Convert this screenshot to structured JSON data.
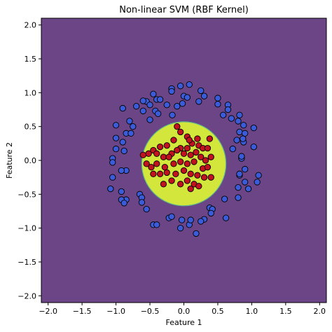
{
  "chart_data": {
    "type": "scatter",
    "title": "Non-linear SVM (RBF Kernel)",
    "xlabel": "Feature 1",
    "ylabel": "Feature 2",
    "xlim": [
      -2.1,
      2.1
    ],
    "ylim": [
      -2.1,
      2.1
    ],
    "xticks": [
      -2.0,
      -1.5,
      -1.0,
      -0.5,
      0.0,
      0.5,
      1.0,
      1.5,
      2.0
    ],
    "yticks": [
      -2.0,
      -1.5,
      -1.0,
      -0.5,
      0.0,
      0.5,
      1.0,
      1.5,
      2.0
    ],
    "xtick_labels": [
      "−2.0",
      "−1.5",
      "−1.0",
      "−0.5",
      "0.0",
      "0.5",
      "1.0",
      "1.5",
      "2.0"
    ],
    "ytick_labels": [
      "−2.0",
      "−1.5",
      "−1.0",
      "−0.5",
      "0.0",
      "0.5",
      "1.0",
      "1.5",
      "2.0"
    ],
    "grid": false,
    "decision_regions": {
      "outer_color": "#6b4585",
      "inner_color": "#d3e63c",
      "inner_boundary": "circle",
      "inner_radius": 0.62,
      "boundary_center": [
        0.0,
        -0.05
      ]
    },
    "series": [
      {
        "class": "outer",
        "color": "#3b5cd8",
        "points": [
          [
            -0.05,
            1.1
          ],
          [
            0.08,
            1.12
          ],
          [
            0.25,
            1.03
          ],
          [
            0.3,
            0.95
          ],
          [
            0.0,
            0.95
          ],
          [
            -0.18,
            1.06
          ],
          [
            -0.18,
            1.02
          ],
          [
            0.05,
            0.93
          ],
          [
            0.22,
            0.87
          ],
          [
            -0.45,
            0.98
          ],
          [
            -0.55,
            0.87
          ],
          [
            -0.4,
            0.9
          ],
          [
            -0.35,
            0.9
          ],
          [
            -0.7,
            0.8
          ],
          [
            -0.9,
            0.77
          ],
          [
            0.5,
            0.92
          ],
          [
            0.5,
            0.83
          ],
          [
            0.65,
            0.82
          ],
          [
            0.65,
            0.75
          ],
          [
            -0.5,
            0.82
          ],
          [
            -0.42,
            0.73
          ],
          [
            -0.38,
            0.69
          ],
          [
            -0.02,
            0.84
          ],
          [
            -0.6,
            0.73
          ],
          [
            -0.17,
            0.67
          ],
          [
            -0.5,
            0.6
          ],
          [
            -0.8,
            0.58
          ],
          [
            -0.75,
            0.5
          ],
          [
            -1.0,
            0.52
          ],
          [
            -0.85,
            0.4
          ],
          [
            -1.0,
            0.33
          ],
          [
            -0.9,
            0.27
          ],
          [
            -0.88,
            0.14
          ],
          [
            -1.0,
            0.17
          ],
          [
            -1.05,
            0.03
          ],
          [
            -1.05,
            -0.03
          ],
          [
            -0.85,
            -0.15
          ],
          [
            -0.92,
            -0.15
          ],
          [
            -1.05,
            -0.25
          ],
          [
            -1.08,
            -0.42
          ],
          [
            -0.92,
            -0.46
          ],
          [
            -0.85,
            -0.58
          ],
          [
            -0.92,
            -0.58
          ],
          [
            -0.88,
            -0.63
          ],
          [
            -0.65,
            -0.5
          ],
          [
            -0.62,
            -0.55
          ],
          [
            -0.62,
            -0.62
          ],
          [
            -0.55,
            -0.72
          ],
          [
            -0.45,
            -0.95
          ],
          [
            -0.4,
            -0.95
          ],
          [
            -0.22,
            -0.85
          ],
          [
            -0.18,
            -0.83
          ],
          [
            -0.05,
            -1.0
          ],
          [
            -0.03,
            -0.88
          ],
          [
            0.08,
            -0.95
          ],
          [
            0.1,
            -0.88
          ],
          [
            0.18,
            -1.08
          ],
          [
            0.3,
            -0.87
          ],
          [
            0.25,
            -0.9
          ],
          [
            0.38,
            -0.7
          ],
          [
            0.42,
            -0.72
          ],
          [
            0.4,
            -0.78
          ],
          [
            0.6,
            -0.57
          ],
          [
            0.62,
            -0.85
          ],
          [
            0.8,
            -0.55
          ],
          [
            0.8,
            -0.4
          ],
          [
            0.9,
            -0.32
          ],
          [
            0.95,
            -0.42
          ],
          [
            0.82,
            -0.22
          ],
          [
            0.82,
            -0.2
          ],
          [
            0.9,
            -0.13
          ],
          [
            0.85,
            0.03
          ],
          [
            0.85,
            0.06
          ],
          [
            1.08,
            -0.32
          ],
          [
            1.1,
            -0.22
          ],
          [
            0.7,
            0.62
          ],
          [
            0.8,
            0.58
          ],
          [
            0.88,
            0.52
          ],
          [
            1.03,
            0.48
          ],
          [
            0.82,
            0.42
          ],
          [
            0.9,
            0.4
          ],
          [
            0.78,
            0.3
          ],
          [
            0.88,
            0.27
          ],
          [
            1.03,
            0.2
          ],
          [
            0.82,
            0.67
          ],
          [
            0.58,
            0.67
          ],
          [
            0.72,
            0.17
          ],
          [
            0.87,
            0.32
          ],
          [
            -0.78,
            0.4
          ],
          [
            -0.6,
            0.88
          ],
          [
            -0.25,
            0.82
          ],
          [
            -0.1,
            0.8
          ]
        ]
      },
      {
        "class": "inner",
        "color": "#c0131f",
        "points": [
          [
            -0.1,
            0.5
          ],
          [
            0.05,
            0.35
          ],
          [
            0.2,
            0.32
          ],
          [
            0.38,
            0.32
          ],
          [
            -0.05,
            0.42
          ],
          [
            0.12,
            0.25
          ],
          [
            0.22,
            0.22
          ],
          [
            0.28,
            0.18
          ],
          [
            0.35,
            0.18
          ],
          [
            0.05,
            0.18
          ],
          [
            -0.05,
            0.18
          ],
          [
            -0.25,
            0.22
          ],
          [
            -0.35,
            0.2
          ],
          [
            -0.45,
            0.15
          ],
          [
            -0.52,
            0.1
          ],
          [
            -0.4,
            0.1
          ],
          [
            -0.3,
            0.05
          ],
          [
            -0.18,
            0.1
          ],
          [
            -0.1,
            0.15
          ],
          [
            0.0,
            0.1
          ],
          [
            0.1,
            0.08
          ],
          [
            0.18,
            0.12
          ],
          [
            0.25,
            0.05
          ],
          [
            0.32,
            0.0
          ],
          [
            0.4,
            0.05
          ],
          [
            -0.55,
            -0.05
          ],
          [
            -0.48,
            -0.1
          ],
          [
            -0.4,
            -0.05
          ],
          [
            -0.28,
            -0.1
          ],
          [
            -0.15,
            -0.05
          ],
          [
            -0.05,
            -0.02
          ],
          [
            0.05,
            -0.05
          ],
          [
            0.15,
            -0.02
          ],
          [
            0.28,
            -0.12
          ],
          [
            0.35,
            -0.1
          ],
          [
            -0.45,
            -0.2
          ],
          [
            -0.35,
            -0.2
          ],
          [
            -0.25,
            -0.18
          ],
          [
            -0.12,
            -0.2
          ],
          [
            0.0,
            -0.15
          ],
          [
            0.1,
            -0.2
          ],
          [
            0.2,
            -0.22
          ],
          [
            0.3,
            -0.25
          ],
          [
            -0.3,
            -0.35
          ],
          [
            -0.18,
            -0.3
          ],
          [
            -0.05,
            -0.35
          ],
          [
            0.05,
            -0.3
          ],
          [
            0.15,
            -0.35
          ],
          [
            0.22,
            -0.38
          ],
          [
            0.1,
            -0.42
          ],
          [
            -0.15,
            0.3
          ],
          [
            -0.22,
            0.05
          ],
          [
            0.4,
            -0.25
          ],
          [
            -0.6,
            0.08
          ],
          [
            0.08,
            0.3
          ]
        ]
      }
    ]
  }
}
